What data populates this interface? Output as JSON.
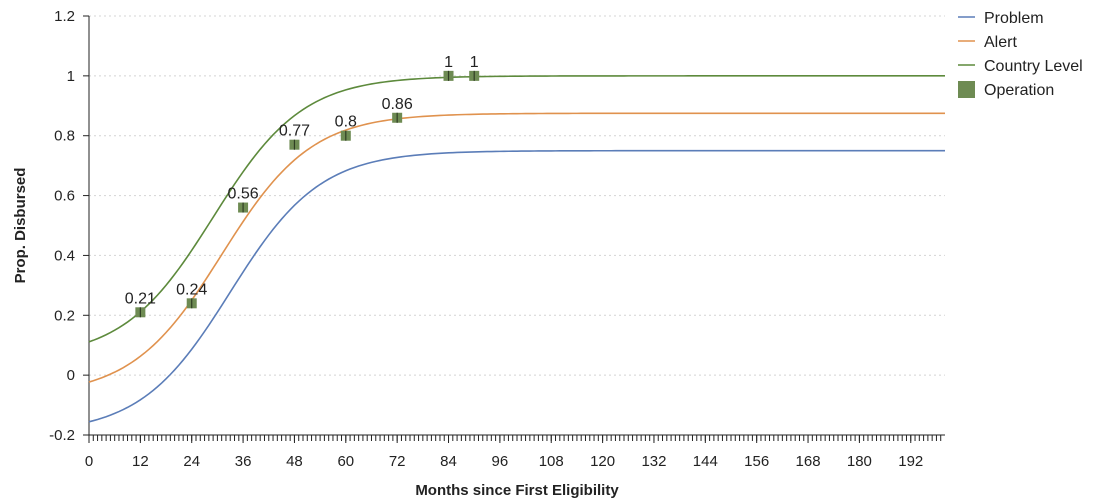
{
  "chart_data": {
    "type": "line",
    "title": "",
    "xlabel": "Months since First Eligibility",
    "ylabel": "Prop. Disbursed",
    "xlim": [
      0,
      200
    ],
    "ylim": [
      -0.2,
      1.2
    ],
    "x_ticks": [
      0,
      12,
      24,
      36,
      48,
      60,
      72,
      84,
      96,
      108,
      120,
      132,
      144,
      156,
      168,
      180,
      192
    ],
    "y_ticks": [
      -0.2,
      0,
      0.2,
      0.4,
      0.6,
      0.8,
      1,
      1.2
    ],
    "y_tick_labels": [
      "-0.2",
      "0",
      "0.2",
      "0.4",
      "0.6",
      "0.8",
      "1",
      "1.2"
    ],
    "minor_x_tick_step": 1,
    "grid": "horizontal dotted",
    "legend_position": "top-right",
    "series": [
      {
        "name": "Problem",
        "kind": "line",
        "color": "#5b7db8",
        "curve": {
          "lower": -0.195,
          "upper": 0.75,
          "midpoint": 33,
          "scale": 10.5
        }
      },
      {
        "name": "Alert",
        "kind": "line",
        "color": "#e0924e",
        "curve": {
          "lower": -0.07,
          "upper": 0.875,
          "midpoint": 31,
          "scale": 10.5
        }
      },
      {
        "name": "Country Level",
        "kind": "line",
        "color": "#5d8a3c",
        "curve": {
          "lower": 0.055,
          "upper": 1.0,
          "midpoint": 29,
          "scale": 10.5
        }
      },
      {
        "name": "Operation",
        "kind": "marker",
        "color": "#6e8b53",
        "points": [
          {
            "x": 12,
            "y": 0.21,
            "label": "0.21"
          },
          {
            "x": 24,
            "y": 0.24,
            "label": "0.24"
          },
          {
            "x": 36,
            "y": 0.56,
            "label": "0.56"
          },
          {
            "x": 48,
            "y": 0.77,
            "label": "0.77"
          },
          {
            "x": 60,
            "y": 0.8,
            "label": "0.8"
          },
          {
            "x": 72,
            "y": 0.86,
            "label": "0.86"
          },
          {
            "x": 84,
            "y": 1.0,
            "label": "1"
          },
          {
            "x": 90,
            "y": 1.0,
            "label": "1"
          }
        ]
      }
    ]
  }
}
